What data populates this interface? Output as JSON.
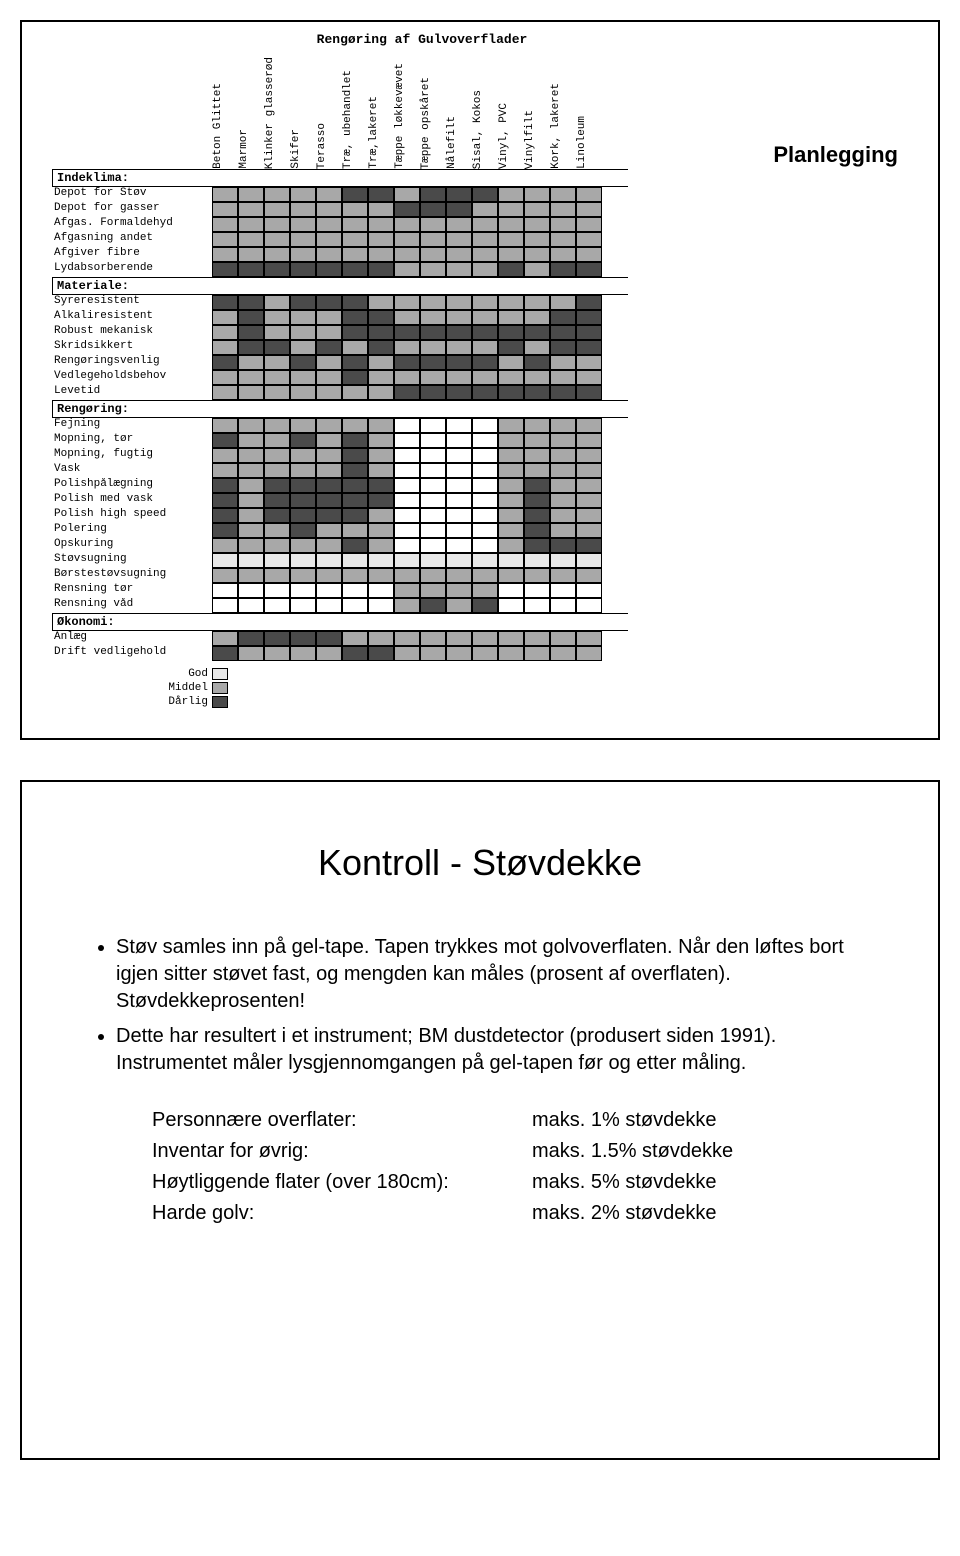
{
  "slide1": {
    "planlegging": "Planlegging",
    "chart": {
      "title": "Rengøring af Gulvoverflader",
      "type": "heatmap",
      "colors": {
        "god": "#e8e8e8",
        "middel": "#a8a8a8",
        "darlig": "#4a4a4a",
        "blank": "#ffffff"
      },
      "columns": [
        "Beton Glittet",
        "Marmor",
        "Klinker glasserød",
        "Skifer",
        "Terasso",
        "Træ, ubehandlet",
        "Træ,lakeret",
        "Tæppe løkkevævet",
        "Tæppe opskåret",
        "Nålefilt",
        "Sisal, Kokos",
        "Vinyl, PVC",
        "Vinylfilt",
        "Kork, lakeret",
        "Linoleum"
      ],
      "sections": [
        {
          "name": "Indeklima:",
          "rows": [
            {
              "label": "Depot for Støv",
              "v": [
                "m",
                "m",
                "m",
                "m",
                "m",
                "d",
                "d",
                "m",
                "d",
                "d",
                "d",
                "m",
                "m",
                "m",
                "m"
              ]
            },
            {
              "label": "Depot for gasser",
              "v": [
                "m",
                "m",
                "m",
                "m",
                "m",
                "m",
                "m",
                "d",
                "d",
                "d",
                "m",
                "m",
                "m",
                "m",
                "m"
              ]
            },
            {
              "label": "Afgas. Formaldehyd",
              "v": [
                "m",
                "m",
                "m",
                "m",
                "m",
                "m",
                "m",
                "m",
                "m",
                "m",
                "m",
                "m",
                "m",
                "m",
                "m"
              ]
            },
            {
              "label": "Afgasning andet",
              "v": [
                "m",
                "m",
                "m",
                "m",
                "m",
                "m",
                "m",
                "m",
                "m",
                "m",
                "m",
                "m",
                "m",
                "m",
                "m"
              ]
            },
            {
              "label": "Afgiver fibre",
              "v": [
                "m",
                "m",
                "m",
                "m",
                "m",
                "m",
                "m",
                "m",
                "m",
                "m",
                "m",
                "m",
                "m",
                "m",
                "m"
              ]
            },
            {
              "label": "Lydabsorberende",
              "v": [
                "d",
                "d",
                "d",
                "d",
                "d",
                "d",
                "d",
                "m",
                "m",
                "m",
                "m",
                "d",
                "m",
                "d",
                "d"
              ]
            }
          ]
        },
        {
          "name": "Materiale:",
          "rows": [
            {
              "label": "Syreresistent",
              "v": [
                "d",
                "d",
                "m",
                "d",
                "d",
                "d",
                "m",
                "m",
                "m",
                "m",
                "m",
                "m",
                "m",
                "m",
                "d"
              ]
            },
            {
              "label": "Alkaliresistent",
              "v": [
                "m",
                "d",
                "m",
                "m",
                "m",
                "d",
                "d",
                "m",
                "m",
                "m",
                "m",
                "m",
                "m",
                "d",
                "d"
              ]
            },
            {
              "label": "Robust mekanisk",
              "v": [
                "m",
                "d",
                "m",
                "m",
                "m",
                "d",
                "d",
                "d",
                "d",
                "d",
                "d",
                "d",
                "d",
                "d",
                "d"
              ]
            },
            {
              "label": "Skridsikkert",
              "v": [
                "m",
                "d",
                "d",
                "m",
                "d",
                "m",
                "d",
                "m",
                "m",
                "m",
                "m",
                "d",
                "m",
                "d",
                "d"
              ]
            },
            {
              "label": "Rengøringsvenlig",
              "v": [
                "d",
                "m",
                "m",
                "d",
                "m",
                "d",
                "m",
                "d",
                "d",
                "d",
                "d",
                "m",
                "d",
                "m",
                "m"
              ]
            },
            {
              "label": "Vedlegeholdsbehov",
              "v": [
                "m",
                "m",
                "m",
                "m",
                "m",
                "d",
                "m",
                "m",
                "m",
                "m",
                "m",
                "m",
                "m",
                "m",
                "m"
              ]
            },
            {
              "label": "Levetid",
              "v": [
                "m",
                "m",
                "m",
                "m",
                "m",
                "m",
                "m",
                "d",
                "d",
                "d",
                "d",
                "d",
                "d",
                "d",
                "d"
              ]
            }
          ]
        },
        {
          "name": "Rengøring:",
          "rows": [
            {
              "label": "Fejning",
              "v": [
                "m",
                "m",
                "m",
                "m",
                "m",
                "m",
                "m",
                "b",
                "b",
                "b",
                "b",
                "m",
                "m",
                "m",
                "m"
              ]
            },
            {
              "label": "Mopning, tør",
              "v": [
                "d",
                "m",
                "m",
                "d",
                "m",
                "d",
                "m",
                "b",
                "b",
                "b",
                "b",
                "m",
                "m",
                "m",
                "m"
              ]
            },
            {
              "label": "Mopning, fugtig",
              "v": [
                "m",
                "m",
                "m",
                "m",
                "m",
                "d",
                "m",
                "b",
                "b",
                "b",
                "b",
                "m",
                "m",
                "m",
                "m"
              ]
            },
            {
              "label": "Vask",
              "v": [
                "m",
                "m",
                "m",
                "m",
                "m",
                "d",
                "m",
                "b",
                "b",
                "b",
                "b",
                "m",
                "m",
                "m",
                "m"
              ]
            },
            {
              "label": "Polishpålægning",
              "v": [
                "d",
                "m",
                "d",
                "d",
                "d",
                "d",
                "d",
                "b",
                "b",
                "b",
                "b",
                "m",
                "d",
                "m",
                "m"
              ]
            },
            {
              "label": "Polish med vask",
              "v": [
                "d",
                "m",
                "d",
                "d",
                "d",
                "d",
                "d",
                "b",
                "b",
                "b",
                "b",
                "m",
                "d",
                "m",
                "m"
              ]
            },
            {
              "label": "Polish high speed",
              "v": [
                "d",
                "m",
                "d",
                "d",
                "d",
                "d",
                "m",
                "b",
                "b",
                "b",
                "b",
                "m",
                "d",
                "m",
                "m"
              ]
            },
            {
              "label": "Polering",
              "v": [
                "d",
                "m",
                "m",
                "d",
                "m",
                "m",
                "m",
                "b",
                "b",
                "b",
                "b",
                "m",
                "d",
                "m",
                "m"
              ]
            },
            {
              "label": "Opskuring",
              "v": [
                "m",
                "m",
                "m",
                "m",
                "m",
                "d",
                "m",
                "b",
                "b",
                "b",
                "b",
                "m",
                "d",
                "d",
                "d"
              ]
            },
            {
              "label": "Støvsugning",
              "v": [
                "g",
                "g",
                "g",
                "g",
                "g",
                "g",
                "g",
                "g",
                "g",
                "g",
                "g",
                "g",
                "g",
                "g",
                "g"
              ]
            },
            {
              "label": "Børstestøvsugning",
              "v": [
                "m",
                "m",
                "m",
                "m",
                "m",
                "m",
                "m",
                "m",
                "m",
                "m",
                "m",
                "m",
                "m",
                "m",
                "m"
              ]
            },
            {
              "label": "Rensning tør",
              "v": [
                "b",
                "b",
                "b",
                "b",
                "b",
                "b",
                "b",
                "m",
                "m",
                "m",
                "m",
                "b",
                "b",
                "b",
                "b"
              ]
            },
            {
              "label": "Rensning våd",
              "v": [
                "b",
                "b",
                "b",
                "b",
                "b",
                "b",
                "b",
                "m",
                "d",
                "m",
                "d",
                "b",
                "b",
                "b",
                "b"
              ]
            }
          ]
        },
        {
          "name": "Økonomi:",
          "rows": [
            {
              "label": "Anlæg",
              "v": [
                "m",
                "d",
                "d",
                "d",
                "d",
                "m",
                "m",
                "m",
                "m",
                "m",
                "m",
                "m",
                "m",
                "m",
                "m"
              ]
            },
            {
              "label": "Drift vedligehold",
              "v": [
                "d",
                "m",
                "m",
                "m",
                "m",
                "d",
                "d",
                "m",
                "m",
                "m",
                "m",
                "m",
                "m",
                "m",
                "m"
              ]
            }
          ]
        }
      ],
      "legend": [
        {
          "label": "God",
          "key": "god"
        },
        {
          "label": "Middel",
          "key": "middel"
        },
        {
          "label": "Dårlig",
          "key": "darlig"
        }
      ]
    }
  },
  "slide2": {
    "title": "Kontroll - Støvdekke",
    "bullets": [
      "Støv samles inn på gel-tape. Tapen trykkes mot golvoverflaten. Når den løftes bort igjen sitter støvet fast, og mengden kan måles (prosent af overflaten). Støvdekkeprosenten!",
      "Dette har resultert i et instrument; BM dustdetector (produsert siden 1991). Instrumentet måler lysgjennomgangen på gel-tapen før og etter måling."
    ],
    "table": [
      {
        "label": "Personnære overflater:",
        "value": "maks. 1% støvdekke"
      },
      {
        "label": "Inventar for øvrig:",
        "value": "maks. 1.5% støvdekke"
      },
      {
        "label": "Høytliggende flater (over 180cm):",
        "value": "maks. 5% støvdekke"
      },
      {
        "label": "Harde golv:",
        "value": "maks. 2% støvdekke"
      }
    ]
  }
}
